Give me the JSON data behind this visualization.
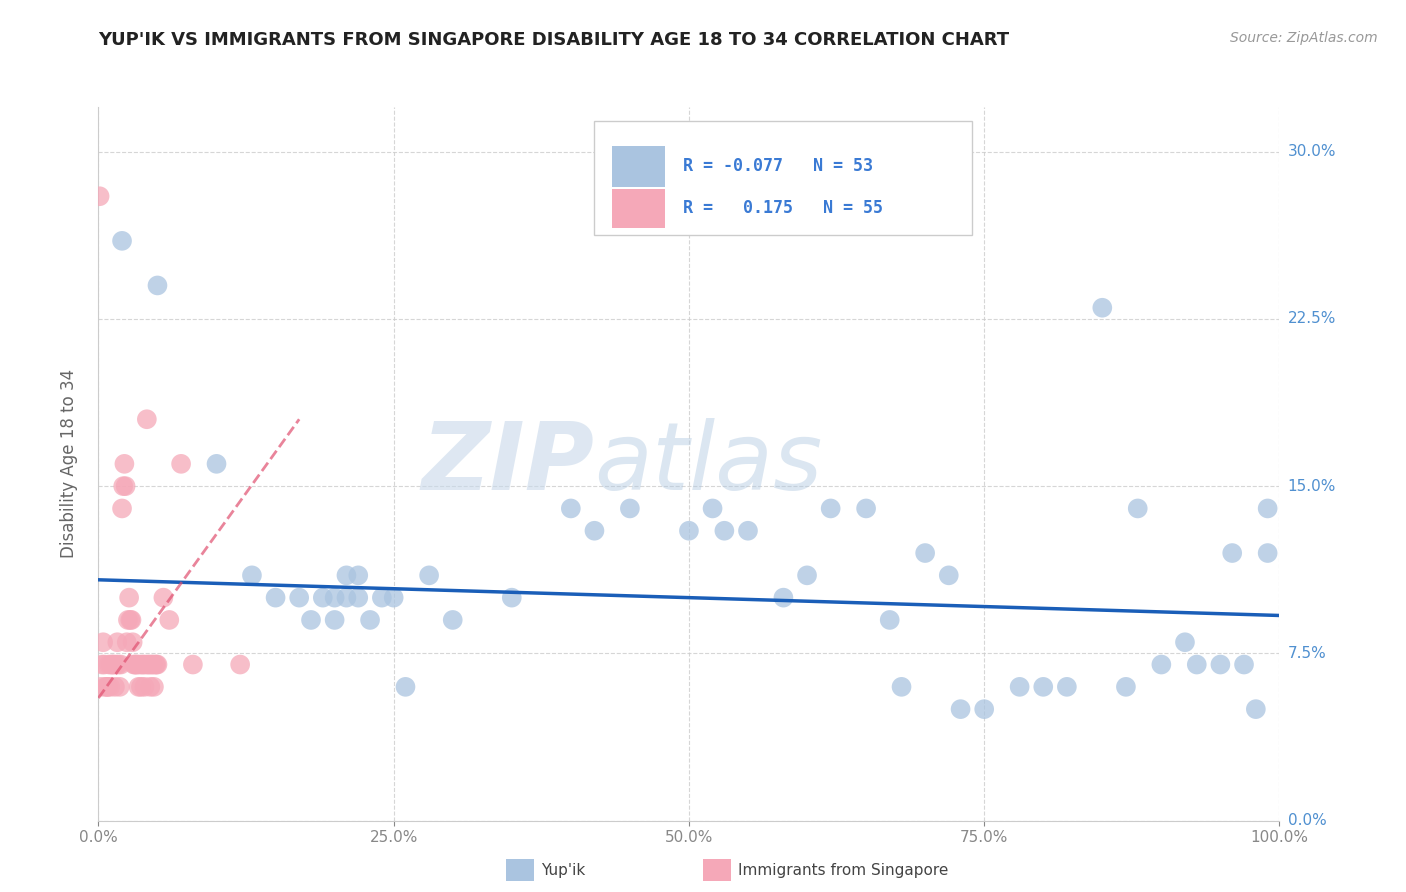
{
  "title": "YUP'IK VS IMMIGRANTS FROM SINGAPORE DISABILITY AGE 18 TO 34 CORRELATION CHART",
  "source": "Source: ZipAtlas.com",
  "ylabel": "Disability Age 18 to 34",
  "xlim": [
    0,
    100
  ],
  "ylim": [
    0,
    32
  ],
  "ytick_vals": [
    0,
    7.5,
    15.0,
    22.5,
    30.0
  ],
  "xtick_vals": [
    0,
    25,
    50,
    75,
    100
  ],
  "xtick_labels": [
    "0.0%",
    "25.0%",
    "50.0%",
    "75.0%",
    "100.0%"
  ],
  "ytick_labels": [
    "0.0%",
    "7.5%",
    "15.0%",
    "22.5%",
    "30.0%"
  ],
  "color_blue": "#aac4e0",
  "color_pink": "#f5a8b8",
  "color_blue_line": "#1a5eb8",
  "color_pink_line": "#e05070",
  "color_legend_text": "#3a7ad4",
  "color_axis_text": "#5090d0",
  "watermark_zip": "ZIP",
  "watermark_atlas": "atlas",
  "blue_scatter_x": [
    2,
    5,
    10,
    13,
    15,
    17,
    18,
    19,
    20,
    21,
    22,
    25,
    26,
    28,
    30,
    35,
    40,
    42,
    45,
    50,
    52,
    53,
    55,
    58,
    60,
    62,
    65,
    67,
    68,
    70,
    72,
    73,
    75,
    78,
    80,
    82,
    85,
    87,
    88,
    90,
    92,
    93,
    95,
    96,
    97,
    98,
    99,
    99,
    20,
    21,
    22,
    23,
    24
  ],
  "blue_scatter_y": [
    26,
    24,
    16,
    11,
    10,
    10,
    9,
    10,
    9,
    10,
    11,
    10,
    6,
    11,
    9,
    10,
    14,
    13,
    14,
    13,
    14,
    13,
    13,
    10,
    11,
    14,
    14,
    9,
    6,
    12,
    11,
    5,
    5,
    6,
    6,
    6,
    23,
    6,
    14,
    7,
    8,
    7,
    7,
    12,
    7,
    5,
    14,
    12,
    10,
    11,
    10,
    9,
    10
  ],
  "pink_scatter_x": [
    0.1,
    0.2,
    0.3,
    0.4,
    0.5,
    0.6,
    0.7,
    0.8,
    0.9,
    1.0,
    1.1,
    1.2,
    1.3,
    1.4,
    1.5,
    1.6,
    1.7,
    1.8,
    1.9,
    2.0,
    2.1,
    2.2,
    2.3,
    2.4,
    2.5,
    2.6,
    2.7,
    2.8,
    2.9,
    3.0,
    3.1,
    3.2,
    3.3,
    3.4,
    3.5,
    3.6,
    3.7,
    3.8,
    3.9,
    4.0,
    4.1,
    4.2,
    4.3,
    4.4,
    4.5,
    4.6,
    4.7,
    4.8,
    4.9,
    5.0,
    5.5,
    6.0,
    7.0,
    8.0,
    12.0
  ],
  "pink_scatter_y": [
    28,
    6,
    7,
    8,
    7,
    6,
    6,
    6,
    7,
    6,
    7,
    7,
    7,
    6,
    7,
    8,
    7,
    6,
    7,
    14,
    15,
    16,
    15,
    8,
    9,
    10,
    9,
    9,
    8,
    7,
    7,
    7,
    7,
    6,
    7,
    6,
    7,
    7,
    6,
    7,
    18,
    7,
    7,
    6,
    7,
    7,
    6,
    7,
    7,
    7,
    10,
    9,
    16,
    7,
    7
  ],
  "blue_trend_x": [
    0,
    100
  ],
  "blue_trend_y": [
    10.8,
    9.2
  ],
  "pink_trend_x": [
    0,
    17
  ],
  "pink_trend_y": [
    5.5,
    18.0
  ],
  "background_color": "#ffffff",
  "grid_color": "#cccccc"
}
